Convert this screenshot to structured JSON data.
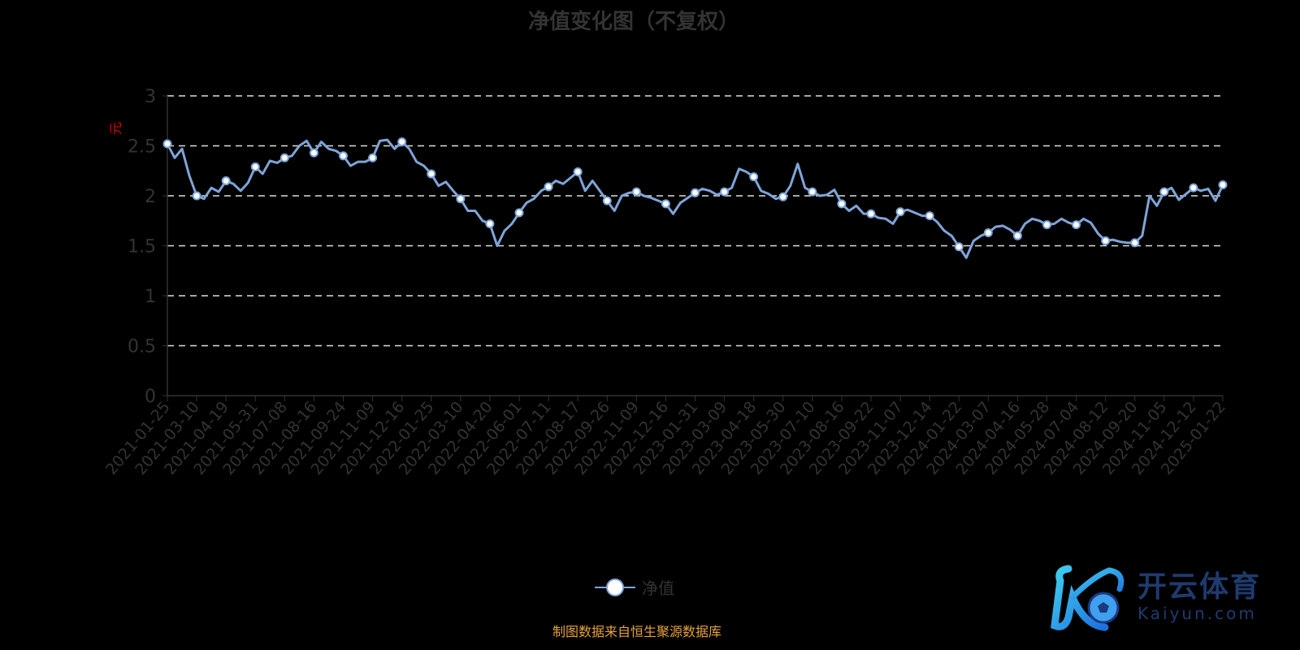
{
  "chart_data": {
    "type": "line",
    "title": "净值变化图（不复权）",
    "ylabel": "元",
    "ylim": [
      0,
      3
    ],
    "yticks": [
      0,
      0.5,
      1,
      1.5,
      2,
      2.5,
      3
    ],
    "grid": "horizontal dashed",
    "legend_position": "bottom",
    "line_color": "#7ea4d8",
    "ylabel_color": "#e00000",
    "tick_labels": [
      "2021-01-25",
      "2021-03-10",
      "2021-04-19",
      "2021-05-31",
      "2021-07-08",
      "2021-08-16",
      "2021-09-24",
      "2021-11-09",
      "2021-12-16",
      "2022-01-25",
      "2022-03-10",
      "2022-04-20",
      "2022-06-01",
      "2022-07-11",
      "2022-08-17",
      "2022-09-26",
      "2022-11-09",
      "2022-12-16",
      "2023-01-31",
      "2023-03-09",
      "2023-04-18",
      "2023-05-30",
      "2023-07-10",
      "2023-08-16",
      "2023-09-22",
      "2023-11-07",
      "2023-12-14",
      "2024-01-22",
      "2024-03-07",
      "2024-04-16",
      "2024-05-28",
      "2024-07-04",
      "2024-08-12",
      "2024-09-20",
      "2024-11-05",
      "2024-12-12",
      "2025-01-22"
    ],
    "series": [
      {
        "name": "净值",
        "values_at_ticks": [
          2.52,
          2.0,
          2.15,
          2.29,
          2.38,
          2.43,
          2.4,
          2.38,
          2.54,
          2.22,
          1.97,
          1.72,
          1.83,
          2.09,
          2.24,
          1.95,
          2.04,
          1.92,
          2.03,
          2.04,
          2.19,
          1.99,
          2.04,
          1.92,
          1.82,
          1.84,
          1.8,
          1.49,
          1.63,
          1.6,
          1.71,
          1.71,
          1.55,
          1.53,
          2.04,
          2.08,
          2.11
        ],
        "values_between_ticks": [
          [
            2.38,
            2.47,
            2.2
          ],
          [
            1.97,
            2.08,
            2.04
          ],
          [
            2.12,
            2.05,
            2.13
          ],
          [
            2.22,
            2.35,
            2.33
          ],
          [
            2.4,
            2.5,
            2.55
          ],
          [
            2.54,
            2.47,
            2.45
          ],
          [
            2.3,
            2.34,
            2.34
          ],
          [
            2.55,
            2.56,
            2.47
          ],
          [
            2.47,
            2.34,
            2.3
          ],
          [
            2.1,
            2.14,
            2.05
          ],
          [
            1.85,
            1.85,
            1.75
          ],
          [
            1.5,
            1.65,
            1.72
          ],
          [
            1.93,
            1.97,
            2.05
          ],
          [
            2.15,
            2.12,
            2.18
          ],
          [
            2.05,
            2.15,
            2.05
          ],
          [
            1.85,
            2.0,
            2.03
          ],
          [
            2.0,
            1.98,
            1.95
          ],
          [
            1.82,
            1.93,
            1.98
          ],
          [
            2.07,
            2.05,
            2.01
          ],
          [
            2.08,
            2.27,
            2.24
          ],
          [
            2.05,
            2.02,
            1.97
          ],
          [
            2.1,
            2.32,
            2.08
          ],
          [
            2.0,
            2.01,
            2.06
          ],
          [
            1.85,
            1.9,
            1.82
          ],
          [
            1.78,
            1.77,
            1.72
          ],
          [
            1.86,
            1.83,
            1.8
          ],
          [
            1.74,
            1.65,
            1.6
          ],
          [
            1.38,
            1.55,
            1.6
          ],
          [
            1.69,
            1.7,
            1.66
          ],
          [
            1.72,
            1.77,
            1.75
          ],
          [
            1.72,
            1.77,
            1.73
          ],
          [
            1.77,
            1.73,
            1.62
          ],
          [
            1.56,
            1.54,
            1.53
          ],
          [
            1.6,
            2.0,
            1.9
          ],
          [
            2.08,
            1.96,
            2.02
          ],
          [
            2.05,
            2.07,
            1.95
          ]
        ]
      }
    ]
  },
  "legend": {
    "label": "净值"
  },
  "source": "制图数据来自恒生聚源数据库",
  "logo": {
    "cn": "开云体育",
    "en": "Kaiyun.com"
  }
}
